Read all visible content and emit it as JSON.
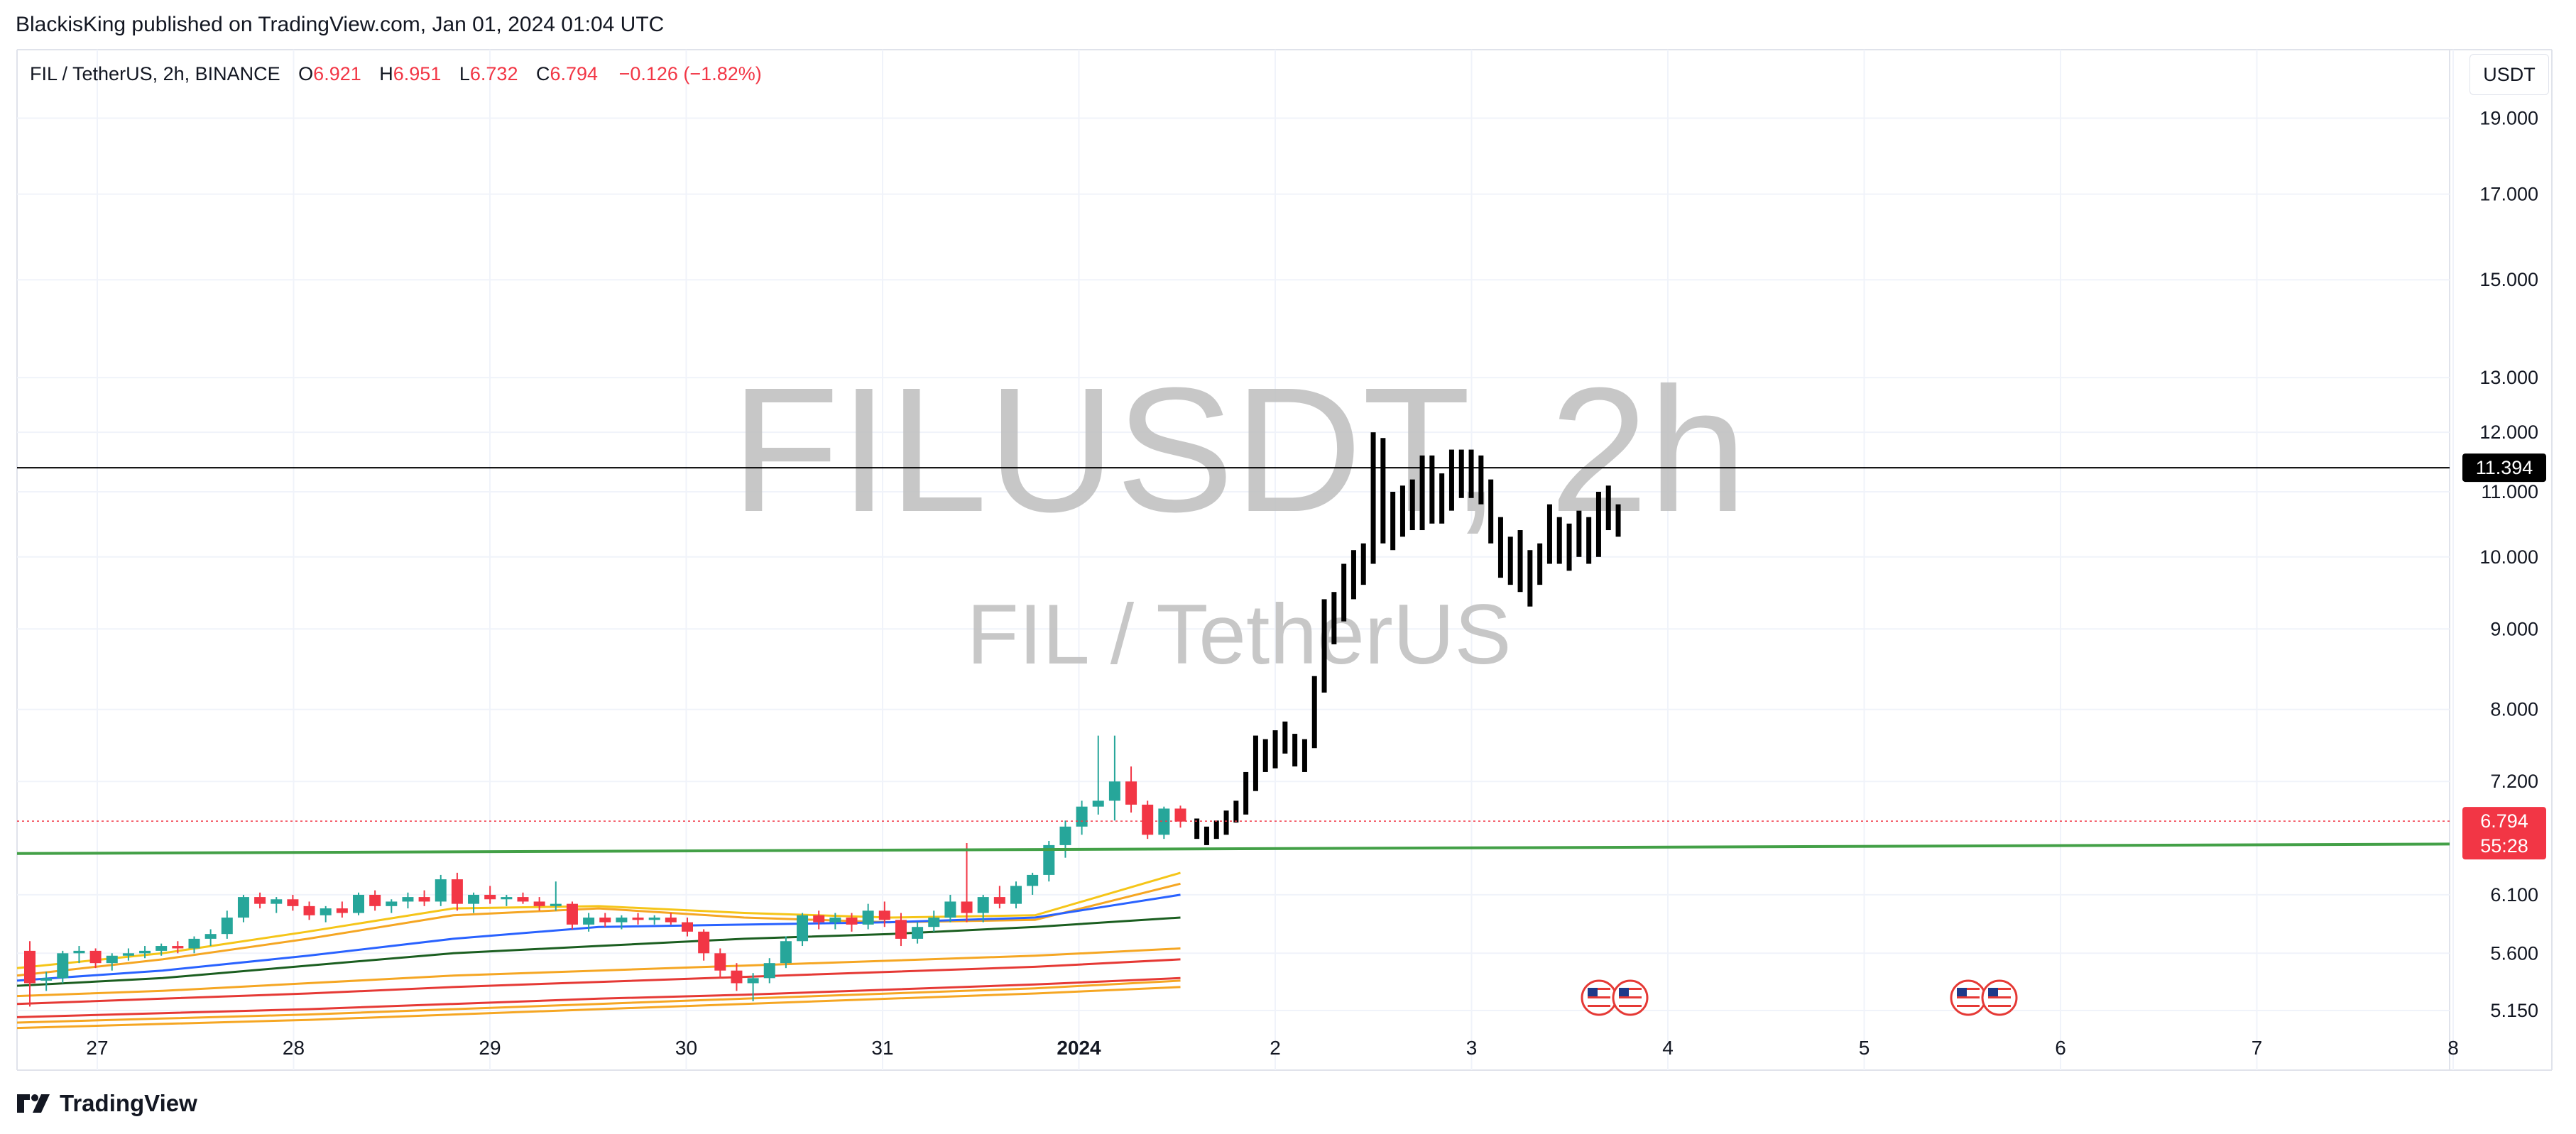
{
  "header": {
    "publish_line": "BlackisKing published on TradingView.com, Jan 01, 2024 01:04 UTC"
  },
  "symbol_line": {
    "symbol": "FIL / TetherUS, 2h, BINANCE",
    "open_label": "O",
    "open": "6.921",
    "high_label": "H",
    "high": "6.951",
    "low_label": "L",
    "low": "6.732",
    "close_label": "C",
    "close": "6.794",
    "change": "−0.126 (−1.82%)"
  },
  "currency_button": "USDT",
  "watermark": {
    "ticker": "FILUSDT, 2h",
    "name": "FIL / TetherUS"
  },
  "footer": {
    "brand": "TradingView"
  },
  "colors": {
    "up": "#26a69a",
    "down": "#f23645",
    "trend": "#43a047",
    "accent_line": "#000000"
  },
  "chart_data": {
    "type": "candlestick",
    "y_scale": "log",
    "ylim": [
      5.0,
      20.0
    ],
    "y_ticks": [
      "5.150",
      "5.600",
      "6.100",
      "7.200",
      "8.000",
      "9.000",
      "10.000",
      "11.000",
      "12.000",
      "13.000",
      "15.000",
      "17.000",
      "19.000"
    ],
    "x_ticks": [
      "27",
      "28",
      "29",
      "30",
      "31",
      "2024",
      "2",
      "3",
      "4",
      "5",
      "6",
      "7",
      "8"
    ],
    "price_labels": [
      {
        "value": 11.394,
        "text": "11.394",
        "style": "black"
      },
      {
        "value": 6.794,
        "text": "6.794",
        "countdown": "55:28",
        "style": "red"
      }
    ],
    "horizontal_line": 11.394,
    "trendline": {
      "start": {
        "x": "Dec 26",
        "y": 6.48
      },
      "end": {
        "x": "Jan 8",
        "y": 6.57
      }
    },
    "events": [
      {
        "x": "Jan 3",
        "icon": "us-flag"
      },
      {
        "x": "Jan 5",
        "icon": "us-flag"
      }
    ],
    "candles_colored": [
      [
        5.62,
        5.7,
        5.18,
        5.36
      ],
      [
        5.38,
        5.45,
        5.3,
        5.4
      ],
      [
        5.4,
        5.62,
        5.36,
        5.6
      ],
      [
        5.6,
        5.66,
        5.52,
        5.62
      ],
      [
        5.62,
        5.64,
        5.48,
        5.52
      ],
      [
        5.52,
        5.6,
        5.46,
        5.58
      ],
      [
        5.58,
        5.64,
        5.54,
        5.6
      ],
      [
        5.6,
        5.66,
        5.56,
        5.62
      ],
      [
        5.62,
        5.68,
        5.58,
        5.66
      ],
      [
        5.66,
        5.7,
        5.6,
        5.64
      ],
      [
        5.64,
        5.74,
        5.6,
        5.72
      ],
      [
        5.72,
        5.8,
        5.66,
        5.76
      ],
      [
        5.76,
        5.96,
        5.72,
        5.9
      ],
      [
        5.9,
        6.1,
        5.86,
        6.08
      ],
      [
        6.08,
        6.12,
        5.98,
        6.02
      ],
      [
        6.02,
        6.08,
        5.94,
        6.06
      ],
      [
        6.06,
        6.1,
        5.96,
        6.0
      ],
      [
        6.0,
        6.04,
        5.88,
        5.92
      ],
      [
        5.92,
        6.0,
        5.86,
        5.98
      ],
      [
        5.98,
        6.04,
        5.9,
        5.94
      ],
      [
        5.94,
        6.12,
        5.92,
        6.1
      ],
      [
        6.1,
        6.14,
        5.96,
        6.0
      ],
      [
        6.0,
        6.06,
        5.94,
        6.04
      ],
      [
        6.04,
        6.12,
        5.98,
        6.08
      ],
      [
        6.08,
        6.14,
        6.0,
        6.04
      ],
      [
        6.04,
        6.28,
        6.0,
        6.24
      ],
      [
        6.24,
        6.3,
        5.96,
        6.02
      ],
      [
        6.02,
        6.12,
        5.94,
        6.1
      ],
      [
        6.1,
        6.18,
        6.02,
        6.06
      ],
      [
        6.06,
        6.1,
        6.0,
        6.08
      ],
      [
        6.08,
        6.12,
        6.02,
        6.04
      ],
      [
        6.04,
        6.08,
        5.96,
        6.0
      ],
      [
        6.0,
        6.22,
        5.96,
        6.02
      ],
      [
        6.02,
        6.04,
        5.8,
        5.84
      ],
      [
        5.84,
        5.94,
        5.78,
        5.9
      ],
      [
        5.9,
        5.94,
        5.82,
        5.86
      ],
      [
        5.86,
        5.92,
        5.8,
        5.9
      ],
      [
        5.9,
        5.94,
        5.84,
        5.88
      ],
      [
        5.88,
        5.92,
        5.84,
        5.9
      ],
      [
        5.9,
        5.94,
        5.84,
        5.86
      ],
      [
        5.86,
        5.9,
        5.74,
        5.78
      ],
      [
        5.78,
        5.8,
        5.54,
        5.6
      ],
      [
        5.6,
        5.64,
        5.4,
        5.46
      ],
      [
        5.46,
        5.52,
        5.3,
        5.36
      ],
      [
        5.36,
        5.44,
        5.22,
        5.4
      ],
      [
        5.4,
        5.56,
        5.36,
        5.52
      ],
      [
        5.52,
        5.74,
        5.48,
        5.7
      ],
      [
        5.7,
        5.94,
        5.66,
        5.92
      ],
      [
        5.92,
        5.96,
        5.8,
        5.86
      ],
      [
        5.86,
        5.94,
        5.8,
        5.9
      ],
      [
        5.9,
        5.94,
        5.78,
        5.84
      ],
      [
        5.84,
        6.02,
        5.8,
        5.96
      ],
      [
        5.96,
        6.04,
        5.82,
        5.88
      ],
      [
        5.88,
        5.94,
        5.66,
        5.72
      ],
      [
        5.72,
        5.86,
        5.68,
        5.82
      ],
      [
        5.82,
        5.96,
        5.78,
        5.9
      ],
      [
        5.9,
        6.1,
        5.86,
        6.04
      ],
      [
        6.04,
        6.58,
        5.86,
        5.94
      ],
      [
        5.94,
        6.1,
        5.86,
        6.08
      ],
      [
        6.08,
        6.18,
        5.98,
        6.02
      ],
      [
        6.02,
        6.22,
        5.98,
        6.18
      ],
      [
        6.18,
        6.3,
        6.1,
        6.28
      ],
      [
        6.28,
        6.6,
        6.22,
        6.56
      ],
      [
        6.56,
        6.8,
        6.44,
        6.74
      ],
      [
        6.74,
        7.0,
        6.66,
        6.94
      ],
      [
        6.94,
        7.7,
        6.86,
        7.0
      ],
      [
        7.0,
        7.7,
        6.8,
        7.2
      ],
      [
        7.2,
        7.36,
        6.88,
        6.96
      ],
      [
        6.96,
        7.0,
        6.62,
        6.66
      ],
      [
        6.66,
        6.94,
        6.62,
        6.92
      ],
      [
        6.92,
        6.95,
        6.73,
        6.79
      ]
    ],
    "bars_black": [
      [
        6.79,
        6.82,
        6.62,
        6.66
      ],
      [
        6.66,
        6.74,
        6.56,
        6.7
      ],
      [
        6.7,
        6.8,
        6.62,
        6.72
      ],
      [
        6.72,
        6.9,
        6.66,
        6.84
      ],
      [
        6.84,
        7.0,
        6.78,
        6.92
      ],
      [
        6.92,
        7.3,
        6.86,
        7.2
      ],
      [
        7.2,
        7.7,
        7.1,
        7.54
      ],
      [
        7.54,
        7.66,
        7.3,
        7.4
      ],
      [
        7.4,
        7.76,
        7.34,
        7.7
      ],
      [
        7.7,
        7.86,
        7.5,
        7.56
      ],
      [
        7.56,
        7.72,
        7.36,
        7.44
      ],
      [
        7.44,
        7.66,
        7.3,
        7.6
      ],
      [
        7.6,
        8.4,
        7.56,
        8.3
      ],
      [
        8.3,
        9.4,
        8.2,
        9.2
      ],
      [
        9.2,
        9.5,
        8.8,
        9.3
      ],
      [
        9.3,
        9.9,
        9.1,
        9.7
      ],
      [
        9.7,
        10.1,
        9.4,
        9.9
      ],
      [
        9.9,
        10.2,
        9.6,
        10.1
      ],
      [
        10.1,
        12.0,
        9.9,
        11.7
      ],
      [
        11.7,
        11.9,
        10.2,
        10.5
      ],
      [
        10.5,
        11.0,
        10.1,
        10.6
      ],
      [
        10.6,
        11.1,
        10.3,
        10.9
      ],
      [
        10.9,
        11.2,
        10.4,
        10.6
      ],
      [
        10.6,
        11.6,
        10.4,
        11.4
      ],
      [
        11.4,
        11.6,
        10.5,
        10.8
      ],
      [
        10.8,
        11.3,
        10.5,
        11.0
      ],
      [
        11.0,
        11.7,
        10.7,
        11.5
      ],
      [
        11.5,
        11.7,
        10.9,
        11.2
      ],
      [
        11.2,
        11.7,
        10.9,
        11.5
      ],
      [
        11.5,
        11.6,
        10.8,
        11.0
      ],
      [
        11.0,
        11.2,
        10.2,
        10.4
      ],
      [
        10.4,
        10.6,
        9.7,
        9.9
      ],
      [
        9.9,
        10.3,
        9.6,
        10.0
      ],
      [
        10.0,
        10.4,
        9.5,
        9.7
      ],
      [
        9.7,
        10.1,
        9.3,
        9.8
      ],
      [
        9.8,
        10.2,
        9.6,
        10.1
      ],
      [
        10.1,
        10.8,
        9.9,
        10.4
      ],
      [
        10.4,
        10.6,
        9.9,
        10.1
      ],
      [
        10.1,
        10.5,
        9.8,
        10.3
      ],
      [
        10.3,
        10.7,
        10.0,
        10.5
      ],
      [
        10.5,
        10.6,
        9.9,
        10.1
      ],
      [
        10.1,
        11.0,
        10.0,
        10.8
      ],
      [
        10.8,
        11.1,
        10.4,
        10.6
      ],
      [
        10.6,
        10.8,
        10.3,
        10.5
      ]
    ],
    "moving_averages": [
      {
        "color": "#f5c518",
        "values": [
          5.48,
          5.6,
          5.78,
          5.98,
          6.0,
          5.94,
          5.9,
          5.92,
          6.3
        ]
      },
      {
        "color": "#f5a623",
        "values": [
          5.42,
          5.55,
          5.72,
          5.92,
          5.98,
          5.9,
          5.86,
          5.88,
          6.2
        ]
      },
      {
        "color": "#2962ff",
        "values": [
          5.38,
          5.46,
          5.58,
          5.72,
          5.82,
          5.84,
          5.86,
          5.9,
          6.1
        ]
      },
      {
        "color": "#1b5e20",
        "values": [
          5.34,
          5.4,
          5.5,
          5.6,
          5.66,
          5.72,
          5.76,
          5.82,
          5.9
        ]
      },
      {
        "color": "#f5a623",
        "values": [
          5.26,
          5.3,
          5.36,
          5.42,
          5.46,
          5.5,
          5.54,
          5.58,
          5.64
        ]
      },
      {
        "color": "#e53935",
        "values": [
          5.2,
          5.24,
          5.28,
          5.33,
          5.37,
          5.41,
          5.45,
          5.49,
          5.55
        ]
      },
      {
        "color": "#e53935",
        "values": [
          5.1,
          5.13,
          5.16,
          5.2,
          5.24,
          5.27,
          5.31,
          5.35,
          5.4
        ]
      },
      {
        "color": "#f5a623",
        "values": [
          5.06,
          5.09,
          5.12,
          5.16,
          5.2,
          5.24,
          5.28,
          5.32,
          5.38
        ]
      },
      {
        "color": "#f5a623",
        "values": [
          5.02,
          5.05,
          5.08,
          5.12,
          5.16,
          5.2,
          5.24,
          5.28,
          5.33
        ]
      }
    ]
  }
}
